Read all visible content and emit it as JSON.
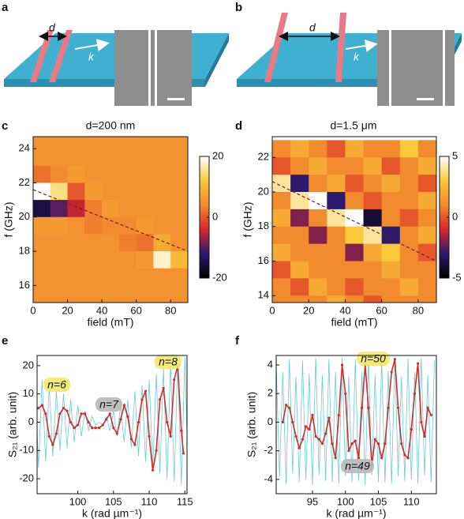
{
  "panel_labels": [
    "a",
    "b",
    "c",
    "d",
    "e",
    "f"
  ],
  "diagrams": [
    {
      "spacing": "d",
      "wavevector": "k"
    },
    {
      "spacing": "d",
      "wavevector": "k"
    }
  ],
  "chart_data": [
    {
      "type": "heatmap",
      "title": "d=200 nm",
      "xlabel": "field (mT)",
      "ylabel": "f (GHz)",
      "x": [
        5,
        15,
        25,
        35,
        45,
        55,
        65,
        75,
        85
      ],
      "y": [
        24.5,
        23.5,
        22.5,
        21.5,
        20.5,
        19.5,
        18.5,
        17.5,
        16.5,
        15.5
      ],
      "z": [
        [
          5,
          5,
          5,
          5,
          5,
          5,
          5,
          5,
          5
        ],
        [
          5,
          5,
          5,
          5,
          5,
          5,
          5,
          5,
          5
        ],
        [
          2,
          4,
          6,
          5,
          5,
          5,
          5,
          5,
          5
        ],
        [
          20,
          15,
          0,
          6,
          5,
          5,
          5,
          5,
          5
        ],
        [
          -15,
          -10,
          -5,
          3,
          6,
          5,
          5,
          5,
          5
        ],
        [
          6,
          6,
          5,
          3,
          4,
          4,
          6,
          5,
          5
        ],
        [
          5,
          5,
          5,
          5,
          5,
          3,
          2,
          8,
          5
        ],
        [
          5,
          5,
          5,
          5,
          5,
          5,
          6,
          18,
          10
        ],
        [
          5,
          5,
          5,
          5,
          5,
          5,
          5,
          5,
          5
        ],
        [
          5,
          5,
          5,
          5,
          5,
          5,
          5,
          5,
          5
        ]
      ],
      "xlim": [
        0,
        90
      ],
      "ylim": [
        15,
        24.7
      ],
      "xticks": [
        0,
        20,
        40,
        60,
        80
      ],
      "yticks": [
        16,
        18,
        20,
        22,
        24
      ],
      "colorbar": {
        "lim": [
          -20,
          20
        ],
        "ticks": [
          20,
          0,
          -20
        ]
      },
      "colors": [
        "#000000",
        "#2b1a6e",
        "#d9262a",
        "#f28a2e",
        "#f9c93a",
        "#ffffff"
      ],
      "dashed_line": {
        "x": [
          0,
          90
        ],
        "y": [
          21.6,
          18
        ],
        "color": "#7a1616"
      }
    },
    {
      "type": "heatmap",
      "title": "d=1.5 μm",
      "xlabel": "field (mT)",
      "ylabel": "f (GHz)",
      "x": [
        5,
        15,
        25,
        35,
        45,
        55,
        65,
        75,
        85
      ],
      "y": [
        22.5,
        21.5,
        20.5,
        19.5,
        18.5,
        17.5,
        16.5,
        15.5,
        14.5,
        13.5
      ],
      "z": [
        [
          1,
          2,
          1,
          0,
          2,
          1,
          1,
          3,
          1
        ],
        [
          0,
          1,
          2,
          1,
          1,
          2,
          0,
          1,
          2
        ],
        [
          4,
          -3,
          1,
          2,
          0,
          1,
          2,
          1,
          0
        ],
        [
          1,
          4,
          5,
          -3,
          1,
          0,
          1,
          1,
          2
        ],
        [
          2,
          -2,
          1,
          4,
          5,
          -4,
          1,
          0,
          1
        ],
        [
          1,
          1,
          -2,
          1,
          3,
          4,
          -3,
          1,
          2
        ],
        [
          2,
          1,
          1,
          1,
          -2,
          2,
          3,
          1,
          0
        ],
        [
          0,
          2,
          1,
          1,
          1,
          1,
          2,
          1,
          1
        ],
        [
          1,
          0,
          2,
          1,
          0,
          1,
          1,
          2,
          1
        ],
        [
          1,
          1,
          1,
          2,
          1,
          0,
          1,
          1,
          1
        ]
      ],
      "xlim": [
        0,
        90
      ],
      "ylim": [
        13.6,
        23.2
      ],
      "xticks": [
        0,
        20,
        40,
        60,
        80
      ],
      "yticks": [
        14,
        16,
        18,
        20,
        22
      ],
      "colorbar": {
        "lim": [
          -5,
          5
        ],
        "ticks": [
          5,
          0,
          -5
        ]
      },
      "colors": [
        "#000000",
        "#2b1a6e",
        "#d9262a",
        "#f28a2e",
        "#f9c93a",
        "#ffffff"
      ],
      "dashed_line": {
        "x": [
          0,
          90
        ],
        "y": [
          20.6,
          16
        ],
        "color": "#7a1616"
      }
    },
    {
      "type": "line",
      "xlabel": "k (rad µm⁻¹)",
      "ylabel": "S₂₁ (arb. unit)",
      "xlim": [
        94.3,
        115.3
      ],
      "ylim": [
        -25.3,
        23.6
      ],
      "xticks": [
        100,
        105,
        110,
        115
      ],
      "yticks": [
        -20,
        -10,
        0,
        10,
        20
      ],
      "series": [
        {
          "color": "#6cc9d8",
          "x": [
            94,
            94.5,
            95,
            95.5,
            96,
            96.5,
            97,
            97.5,
            98,
            98.5,
            99,
            99.5,
            100,
            100.5,
            101,
            101.5,
            102,
            102.5,
            103,
            103.5,
            104,
            104.5,
            105,
            105.5,
            106,
            106.5,
            107,
            107.5,
            108,
            108.5,
            109,
            109.5,
            110,
            110.5,
            111,
            111.5,
            112,
            112.5,
            113,
            113.5,
            114,
            114.5,
            115,
            115.5
          ],
          "values": [
            17,
            -16,
            15,
            -14,
            13,
            -12,
            11,
            -10,
            10,
            -9,
            8,
            -7,
            6,
            -5,
            4,
            -3,
            2,
            -1,
            0,
            -1,
            2,
            -3,
            4,
            -5,
            6,
            -7,
            8,
            -9,
            11,
            -12,
            13,
            -14,
            15,
            -16,
            17,
            -18,
            19,
            -20,
            21,
            -21,
            22,
            -22,
            23,
            -23
          ]
        },
        {
          "color": "#c8312b",
          "markers": true,
          "x": [
            94.5,
            95,
            95.5,
            96,
            96.5,
            97,
            97.5,
            98,
            98.5,
            99,
            99.5,
            100,
            100.5,
            101,
            101.5,
            102,
            102.5,
            103,
            103.5,
            104,
            104.5,
            105,
            105.5,
            106,
            106.5,
            107,
            107.5,
            108,
            108.5,
            109,
            109.5,
            110,
            110.5,
            111,
            111.5,
            112,
            112.5,
            113,
            113.5,
            114,
            114.5,
            114.8
          ],
          "values": [
            5,
            6,
            3,
            -5,
            -8,
            -4,
            3,
            5,
            4,
            0,
            -2,
            -1,
            3,
            3,
            0,
            -2,
            -2,
            -2,
            -1,
            1,
            3,
            -2,
            -4,
            1,
            6,
            2,
            -6,
            -8,
            0,
            8,
            11,
            -5,
            -17,
            -10,
            8,
            12,
            0,
            -5,
            15,
            20,
            -3,
            -11
          ]
        }
      ],
      "annotations": [
        {
          "text": "n=6",
          "color": "#f3e86a"
        },
        {
          "text": "n=7",
          "color": "#b8b8b8"
        },
        {
          "text": "n=8",
          "color": "#f3e86a"
        }
      ]
    },
    {
      "type": "line",
      "xlabel": "k (rad µm⁻¹)",
      "ylabel": "S₂₁ (arb. unit)",
      "xlim": [
        89.5,
        113.8
      ],
      "ylim": [
        -5,
        4.66
      ],
      "xticks": [
        95,
        100,
        105,
        110
      ],
      "yticks": [
        -4,
        -2,
        0,
        2,
        4
      ],
      "series": [
        {
          "color": "#6cc9d8",
          "x": [
            89.5,
            90,
            90.5,
            91,
            91.5,
            92,
            92.5,
            93,
            93.5,
            94,
            94.5,
            95,
            95.5,
            96,
            96.5,
            97,
            97.5,
            98,
            98.5,
            99,
            99.5,
            100,
            100.5,
            101,
            101.5,
            102,
            102.5,
            103,
            103.5,
            104,
            104.5,
            105,
            105.5,
            106,
            106.5,
            107,
            107.5,
            108,
            108.5,
            109,
            109.5,
            110,
            110.5,
            111,
            111.5,
            112,
            112.5,
            113,
            113.5
          ],
          "values": [
            4.2,
            -3.8,
            3.5,
            -4.3,
            4.4,
            -3.6,
            3.2,
            -4.2,
            4.3,
            -4,
            3.4,
            -4.4,
            4.5,
            -3.7,
            3.3,
            -4.1,
            4.4,
            -4.2,
            3.5,
            -4.3,
            4.5,
            -3.8,
            3.2,
            -4.2,
            4.4,
            -4.1,
            3.5,
            -4.4,
            4.5,
            -3.7,
            3.3,
            -4.2,
            4.4,
            -4.2,
            3.6,
            -4.3,
            4.5,
            -3.8,
            3.2,
            -4.1,
            4.4,
            -4,
            3.5,
            -4.3,
            4.5,
            -3.7,
            3.3,
            -4.2,
            4.3
          ]
        },
        {
          "color": "#c8312b",
          "markers": true,
          "x": [
            90.5,
            91,
            91.5,
            92,
            92.5,
            93,
            93.5,
            94,
            94.5,
            95,
            95.5,
            96,
            96.5,
            97,
            97.5,
            98,
            98.5,
            99,
            99.5,
            100,
            100.5,
            101,
            101.5,
            102,
            102.5,
            103,
            103.5,
            104,
            104.5,
            105,
            105.5,
            106,
            106.5,
            107,
            107.5,
            108,
            108.5,
            109,
            109.5,
            110,
            110.5,
            111,
            111.5,
            112,
            112.5,
            113
          ],
          "values": [
            0,
            1.2,
            1,
            0,
            -1,
            -1.8,
            -1.2,
            -0.3,
            -0.5,
            0.5,
            -1,
            -1.2,
            -1.5,
            -0.8,
            0.3,
            -1.5,
            -2.5,
            0.5,
            4,
            2,
            -2,
            -1.5,
            -1.3,
            -2.5,
            1,
            4,
            1,
            -3,
            -1.2,
            -1.5,
            -2.5,
            -1.5,
            1,
            3.5,
            4.4,
            1,
            -1.5,
            -2.3,
            -2.5,
            -0.5,
            2,
            4.1,
            0,
            -1,
            1,
            0.5
          ]
        }
      ],
      "annotations": [
        {
          "text": "n=50",
          "color": "#f3e86a"
        },
        {
          "text": "n=49",
          "color": "#b8b8b8"
        }
      ]
    }
  ]
}
